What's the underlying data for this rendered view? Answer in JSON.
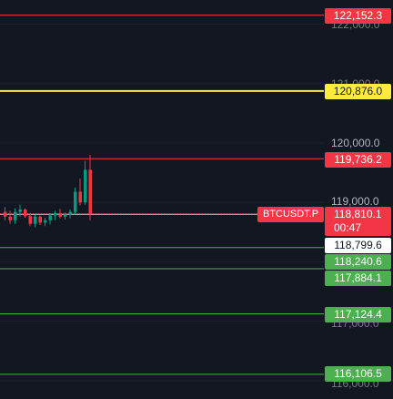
{
  "colors": {
    "background": "#131722",
    "red": "#f23645",
    "green": "#4caf50",
    "yellow": "#ffeb3b",
    "text_light": "#ffffff",
    "axis_text": "#b2b5be"
  },
  "symbol": "BTCUSDT.P",
  "current": {
    "price": "118,810.1",
    "countdown": "00:47"
  },
  "axis_labels": [
    "120,000.0",
    "119,000.0"
  ],
  "axis_partial": [
    "122,000.0",
    "121,000.0",
    "117,000.0",
    "116,000.0"
  ],
  "levels": [
    {
      "price": "122,152.3",
      "color": "red"
    },
    {
      "price": "120,876.0",
      "color": "yellow"
    },
    {
      "price": "119,736.2",
      "color": "red"
    },
    {
      "price": "118,799.6",
      "color": "white"
    },
    {
      "price": "118,240.6",
      "color": "green"
    },
    {
      "price": "117,884.1",
      "color": "green"
    },
    {
      "price": "117,124.4",
      "color": "green"
    },
    {
      "price": "116,106.5",
      "color": "green"
    }
  ],
  "candles": [
    {
      "o": 118840,
      "h": 118920,
      "l": 118700,
      "c": 118760
    },
    {
      "o": 118760,
      "h": 118860,
      "l": 118640,
      "c": 118700
    },
    {
      "o": 118700,
      "h": 118900,
      "l": 118640,
      "c": 118840
    },
    {
      "o": 118840,
      "h": 118960,
      "l": 118760,
      "c": 118880
    },
    {
      "o": 118880,
      "h": 118900,
      "l": 118740,
      "c": 118770
    },
    {
      "o": 118770,
      "h": 118800,
      "l": 118600,
      "c": 118640
    },
    {
      "o": 118640,
      "h": 118790,
      "l": 118580,
      "c": 118760
    },
    {
      "o": 118760,
      "h": 118780,
      "l": 118620,
      "c": 118660
    },
    {
      "o": 118660,
      "h": 118740,
      "l": 118600,
      "c": 118700
    },
    {
      "o": 118700,
      "h": 118820,
      "l": 118630,
      "c": 118780
    },
    {
      "o": 118780,
      "h": 118860,
      "l": 118700,
      "c": 118820
    },
    {
      "o": 118820,
      "h": 118890,
      "l": 118730,
      "c": 118760
    },
    {
      "o": 118760,
      "h": 118830,
      "l": 118710,
      "c": 118800
    },
    {
      "o": 118800,
      "h": 118880,
      "l": 118730,
      "c": 118840
    },
    {
      "o": 118840,
      "h": 119250,
      "l": 118800,
      "c": 119180
    },
    {
      "o": 119180,
      "h": 119400,
      "l": 118950,
      "c": 119000
    },
    {
      "o": 119000,
      "h": 119700,
      "l": 118960,
      "c": 119550
    },
    {
      "o": 119550,
      "h": 119800,
      "l": 118700,
      "c": 118810
    }
  ]
}
